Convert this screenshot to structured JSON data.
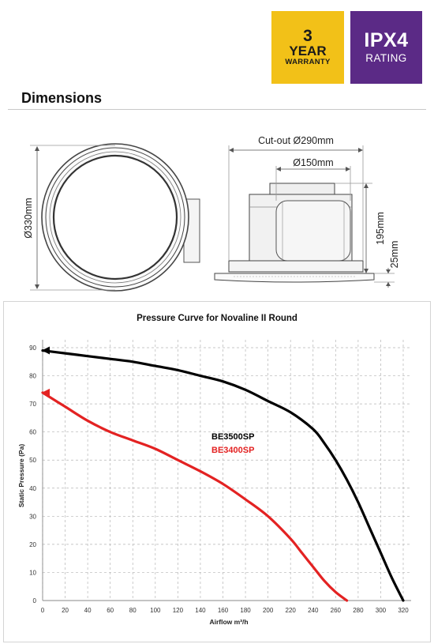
{
  "badges": {
    "warranty": {
      "number": "3",
      "word": "YEAR",
      "sub": "WARRANTY",
      "color": "#f2c118"
    },
    "rating": {
      "main": "IPX4",
      "sub": "RATING",
      "color": "#5b2a86"
    }
  },
  "dimensions": {
    "section_title": "Dimensions",
    "diameter_label": "Ø330mm",
    "cutout_label": "Cut-out Ø290mm",
    "duct_label": "Ø150mm",
    "height_label": "195mm",
    "fascia_label": "25mm"
  },
  "chart_data": {
    "type": "line",
    "title": "Pressure Curve for Novaline II Round",
    "xlabel": "Airflow m³/h",
    "ylabel": "Static Pressure (Pa)",
    "xlim": [
      0,
      320
    ],
    "ylim": [
      0,
      90
    ],
    "x_ticks": [
      0,
      20,
      40,
      60,
      80,
      100,
      120,
      140,
      160,
      180,
      200,
      220,
      240,
      260,
      280,
      300,
      320
    ],
    "y_ticks": [
      0,
      10,
      20,
      30,
      40,
      50,
      60,
      70,
      80,
      90
    ],
    "grid": true,
    "legend_position": "center",
    "series": [
      {
        "name": "BE3500SP",
        "color": "#000000",
        "x": [
          0,
          20,
          40,
          60,
          80,
          100,
          120,
          140,
          160,
          180,
          200,
          220,
          240,
          250,
          260,
          270,
          280,
          290,
          300,
          310,
          320
        ],
        "y": [
          89,
          88,
          87,
          86,
          85,
          83.5,
          82,
          80,
          78,
          75,
          71,
          67,
          61,
          56,
          50,
          43,
          35,
          26,
          17,
          8,
          0
        ]
      },
      {
        "name": "BE3400SP",
        "color": "#e32222",
        "x": [
          0,
          20,
          40,
          60,
          80,
          100,
          120,
          140,
          160,
          180,
          200,
          220,
          230,
          240,
          250,
          260,
          270
        ],
        "y": [
          74,
          69,
          64,
          60,
          57,
          54,
          50,
          46,
          41.5,
          36,
          30,
          22,
          17,
          12,
          7,
          3,
          0
        ]
      }
    ]
  }
}
